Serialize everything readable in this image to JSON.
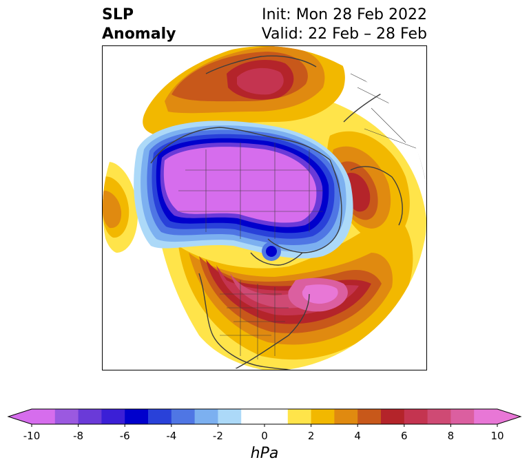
{
  "header": {
    "variable_line1": "SLP",
    "variable_line2": "Anomaly",
    "init_label": "Init: Mon 28 Feb 2022",
    "valid_label": "Valid: 22 Feb – 28 Feb"
  },
  "colorbar": {
    "units": "hPa",
    "ticks": [
      "-10",
      "-8",
      "-6",
      "-4",
      "-2",
      "0",
      "2",
      "4",
      "6",
      "8",
      "10"
    ],
    "min": -10,
    "max": 10,
    "step": 1,
    "extend": "both",
    "colors": [
      "#d66ded",
      "#9b59e0",
      "#6a3ad8",
      "#3b1fd6",
      "#0000cc",
      "#2941d9",
      "#4f76e4",
      "#7cb0f0",
      "#acd9f8",
      "#ffffff",
      "#ffffff",
      "#ffe44a",
      "#f2b800",
      "#e08a10",
      "#c8581a",
      "#b4242a",
      "#c43450",
      "#cf4a74",
      "#db5fa0",
      "#e877d6"
    ],
    "under_color": "#d66ded",
    "over_color": "#e877d6"
  },
  "map": {
    "projection": "polar-stereographic",
    "hemisphere": "north",
    "features": [
      "coastlines",
      "country borders",
      "state borders"
    ]
  }
}
